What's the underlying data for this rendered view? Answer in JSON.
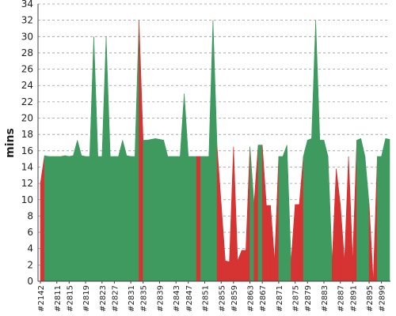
{
  "chart_data": {
    "type": "area",
    "ylabel": "mins",
    "ylim": [
      0,
      34
    ],
    "y_ticks": [
      0,
      2,
      4,
      6,
      8,
      10,
      12,
      14,
      16,
      18,
      20,
      22,
      24,
      26,
      28,
      30,
      32,
      34
    ],
    "grid": true,
    "colors": {
      "success": "#3f9a5f",
      "failure": "#d63333"
    },
    "x_tick_labels": [
      "#2142",
      "#2811",
      "#2815",
      "#2819",
      "#2823",
      "#2827",
      "#2831",
      "#2835",
      "#2839",
      "#2843",
      "#2847",
      "#2851",
      "#2855",
      "#2859",
      "#2863",
      "#2867",
      "#2871",
      "#2875",
      "#2879",
      "#2883",
      "#2887",
      "#2891",
      "#2895",
      "#2899"
    ],
    "values": [
      12.0,
      15.4,
      15.3,
      15.3,
      15.3,
      15.3,
      15.4,
      15.3,
      15.4,
      17.3,
      15.4,
      15.3,
      15.3,
      30.0,
      15.3,
      15.3,
      30.0,
      15.3,
      15.3,
      15.3,
      17.3,
      15.4,
      15.3,
      15.3,
      32.0,
      17.3,
      17.3,
      17.4,
      17.5,
      17.4,
      17.3,
      15.3,
      15.3,
      15.3,
      15.3,
      23.0,
      15.3,
      15.3,
      15.3,
      15.3,
      15.3,
      15.3,
      32.0,
      16.5,
      9.5,
      2.5,
      2.4,
      16.5,
      2.5,
      3.8,
      3.8,
      16.5,
      9.5,
      16.7,
      16.7,
      9.3,
      9.3,
      2.5,
      15.3,
      15.3,
      16.7,
      2.4,
      9.4,
      9.4,
      15.3,
      17.3,
      17.5,
      32.0,
      17.3,
      17.3,
      15.3,
      2.5,
      13.8,
      9.4,
      2.5,
      15.3,
      2.5,
      17.3,
      17.5,
      15.3,
      9.5,
      0.0,
      15.3,
      15.3,
      17.5,
      17.4
    ],
    "status": [
      "F",
      "S",
      "S",
      "S",
      "S",
      "S",
      "S",
      "S",
      "S",
      "S",
      "S",
      "S",
      "S",
      "S",
      "S",
      "S",
      "S",
      "S",
      "S",
      "S",
      "S",
      "S",
      "S",
      "S",
      "F",
      "S",
      "S",
      "S",
      "S",
      "S",
      "S",
      "S",
      "S",
      "S",
      "S",
      "S",
      "S",
      "S",
      "F",
      "S",
      "S",
      "S",
      "S",
      "F",
      "F",
      "F",
      "F",
      "F",
      "F",
      "F",
      "F",
      "S",
      "F",
      "S",
      "F",
      "F",
      "F",
      "F",
      "S",
      "S",
      "S",
      "F",
      "F",
      "F",
      "S",
      "S",
      "S",
      "S",
      "S",
      "S",
      "S",
      "F",
      "F",
      "F",
      "F",
      "F",
      "F",
      "S",
      "S",
      "S",
      "F",
      "F",
      "S",
      "S",
      "S",
      "S"
    ]
  }
}
